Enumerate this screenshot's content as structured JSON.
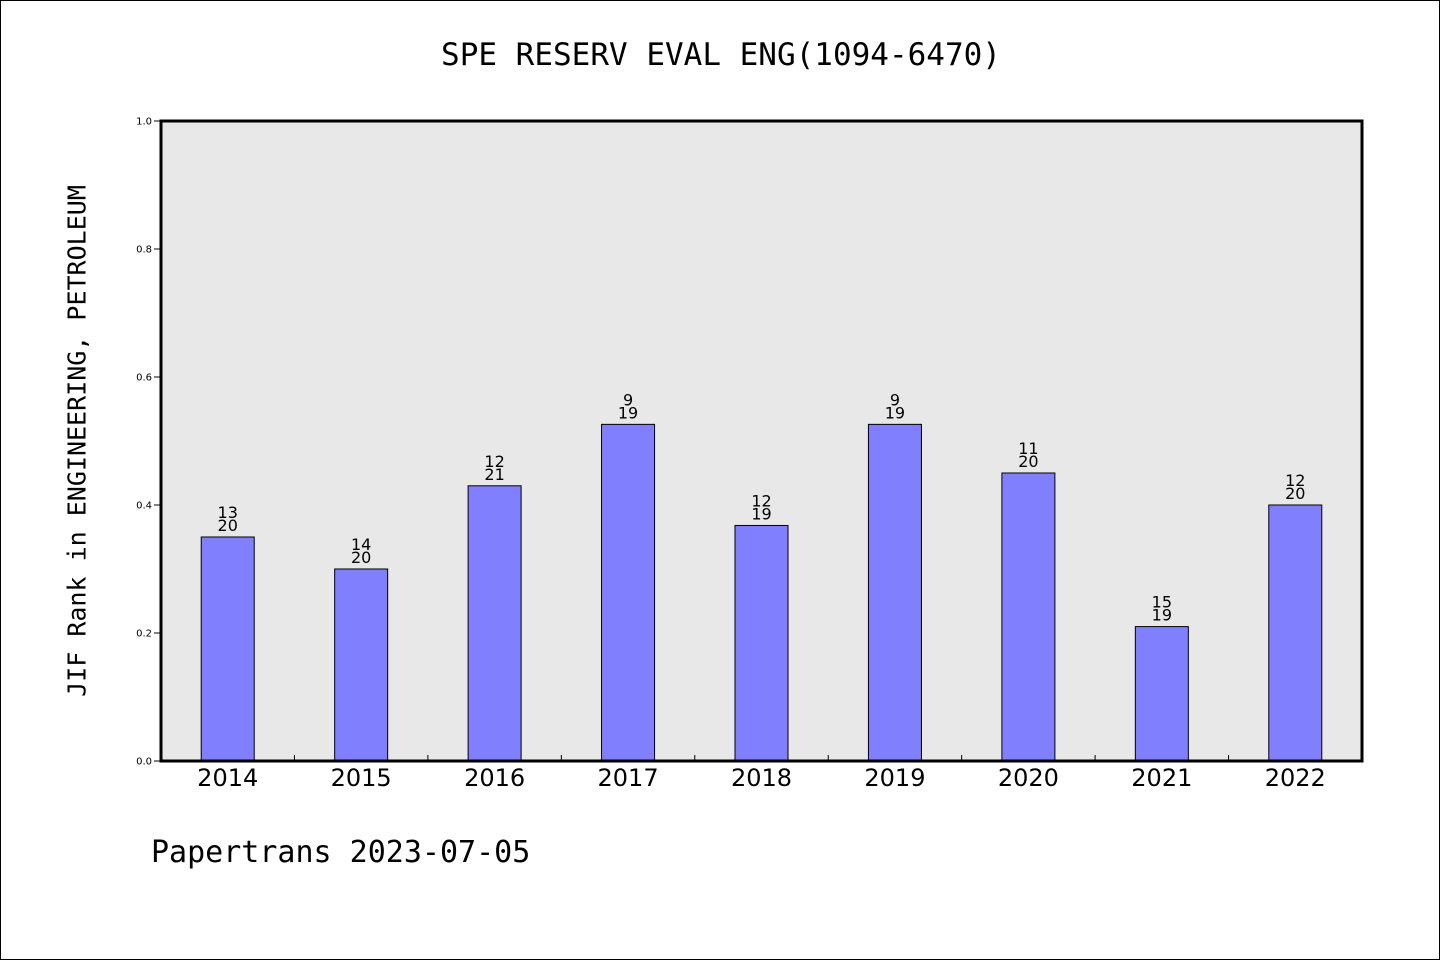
{
  "chart_data": {
    "type": "bar",
    "title": "SPE RESERV EVAL ENG(1094-6470)",
    "xlabel": "",
    "ylabel": "JIF Rank in ENGINEERING, PETROLEUM",
    "ylim": [
      0,
      1.0
    ],
    "yticks": [
      "0.0",
      "0.2",
      "0.4",
      "0.6",
      "0.8",
      "1.0"
    ],
    "categories": [
      "2014",
      "2015",
      "2016",
      "2017",
      "2018",
      "2019",
      "2020",
      "2021",
      "2022"
    ],
    "values": [
      0.35,
      0.3,
      0.43,
      0.526,
      0.368,
      0.526,
      0.45,
      0.21,
      0.4
    ],
    "labels": [
      {
        "rank": "13",
        "total": "20"
      },
      {
        "rank": "14",
        "total": "20"
      },
      {
        "rank": "12",
        "total": "21"
      },
      {
        "rank": "9",
        "total": "19"
      },
      {
        "rank": "12",
        "total": "19"
      },
      {
        "rank": "9",
        "total": "19"
      },
      {
        "rank": "11",
        "total": "20"
      },
      {
        "rank": "15",
        "total": "19"
      },
      {
        "rank": "12",
        "total": "20"
      }
    ],
    "grid": false,
    "colors": {
      "bar": "#8080ff",
      "plot_background": "#e8e8e8"
    }
  },
  "footer": "Papertrans 2023-07-05"
}
